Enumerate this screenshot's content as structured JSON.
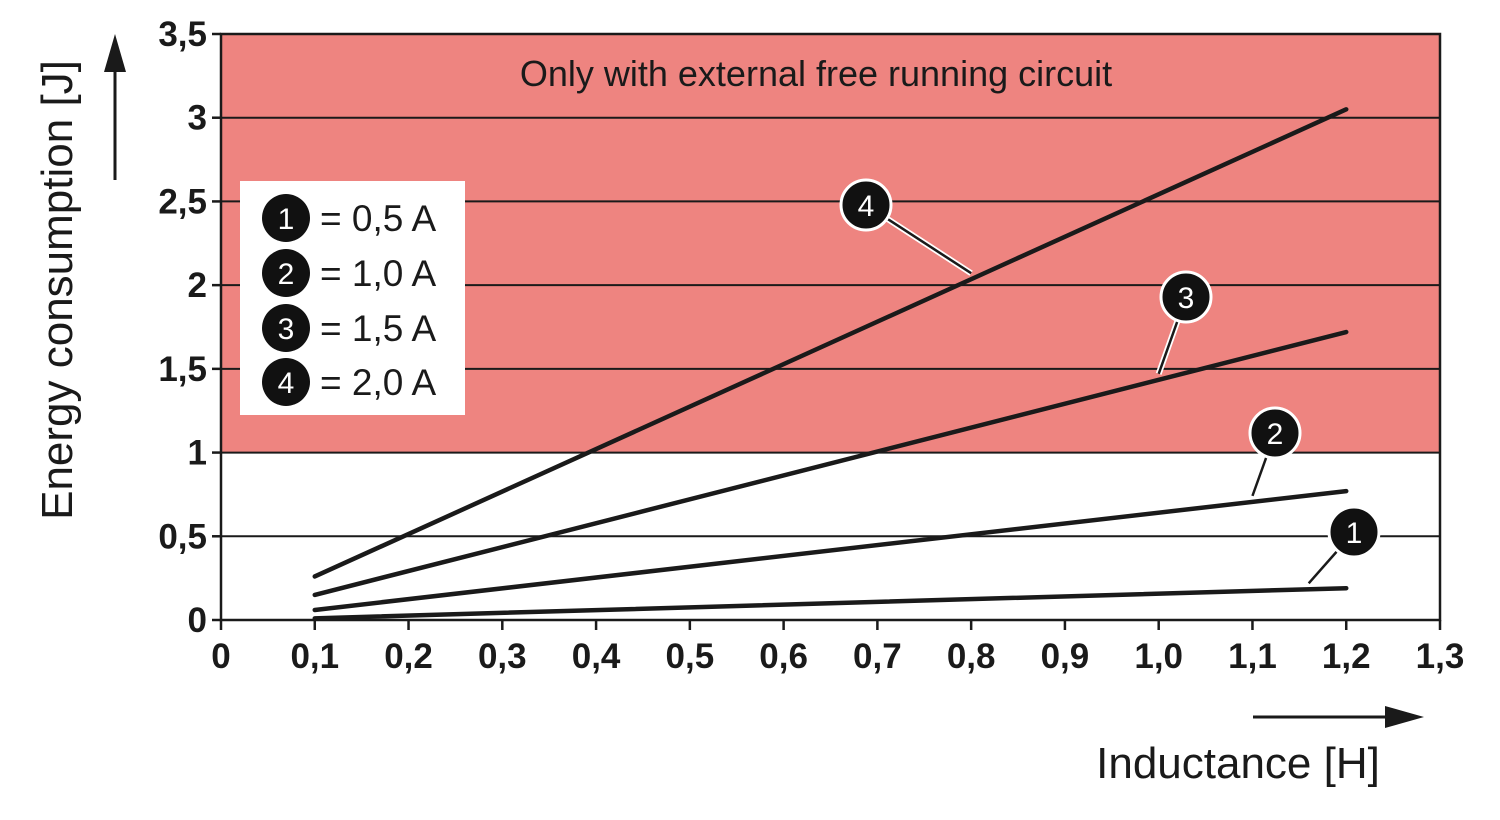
{
  "chart_data": {
    "type": "line",
    "title": "",
    "xlabel": "Inductance [H]",
    "ylabel": "Energy consumption [J]",
    "xlim": [
      0,
      1.3
    ],
    "ylim": [
      0,
      3.5
    ],
    "x_ticks": [
      "0",
      "0,1",
      "0,2",
      "0,3",
      "0,4",
      "0,5",
      "0,6",
      "0,7",
      "0,8",
      "0,9",
      "1,0",
      "1,1",
      "1,2",
      "1,3"
    ],
    "y_ticks": [
      "0",
      "0,5",
      "1",
      "1,5",
      "2",
      "2,5",
      "3",
      "3,5"
    ],
    "grid": "horizontal",
    "shaded_region": {
      "y_from": 1,
      "y_to": 3.5,
      "label": "Only with external free running circuit",
      "color": "#ee8480"
    },
    "series": [
      {
        "id": "1",
        "name": "= 0,5 A",
        "x": [
          0.1,
          1.2
        ],
        "y": [
          0.01,
          0.19
        ]
      },
      {
        "id": "2",
        "name": "= 1,0 A",
        "x": [
          0.1,
          1.2
        ],
        "y": [
          0.06,
          0.77
        ]
      },
      {
        "id": "3",
        "name": "= 1,5 A",
        "x": [
          0.1,
          1.2
        ],
        "y": [
          0.15,
          1.72
        ]
      },
      {
        "id": "4",
        "name": "= 2,0 A",
        "x": [
          0.1,
          1.2
        ],
        "y": [
          0.26,
          3.05
        ]
      }
    ],
    "legend_position": "top-left"
  }
}
